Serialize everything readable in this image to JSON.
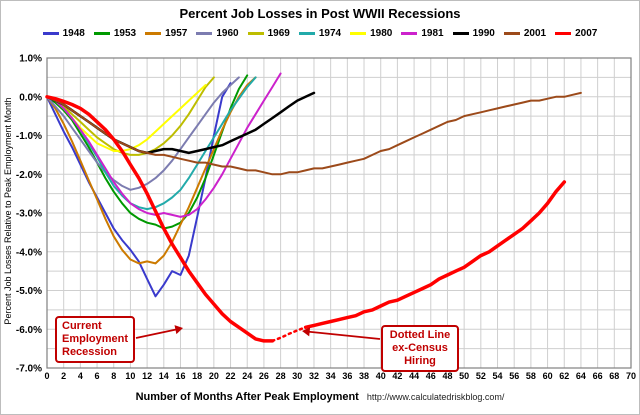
{
  "chart_data": {
    "type": "line",
    "title": "Percent Job Losses in Post WWII Recessions",
    "xlabel": "Number of Months After Peak Employment",
    "ylabel": "Percent Job Losses Relative to Peak Employment Month",
    "source_url": "http://www.calculatedriskblog.com/",
    "xlim": [
      0,
      70
    ],
    "ylim": [
      -7,
      1
    ],
    "x_tick_step": 2,
    "y_grid_step": 0.5,
    "grid": true,
    "legend_position": "top",
    "x_ticks": [
      0,
      2,
      4,
      6,
      8,
      10,
      12,
      14,
      16,
      18,
      20,
      22,
      24,
      26,
      28,
      30,
      32,
      34,
      36,
      38,
      40,
      42,
      44,
      46,
      48,
      50,
      52,
      54,
      56,
      58,
      60,
      62,
      64,
      66,
      68,
      70
    ],
    "y_ticks": [
      {
        "value": 1.0,
        "label": "1.0%"
      },
      {
        "value": 0.0,
        "label": "0.0%"
      },
      {
        "value": -1.0,
        "label": "-1.0%"
      },
      {
        "value": -2.0,
        "label": "-2.0%"
      },
      {
        "value": -3.0,
        "label": "-3.0%"
      },
      {
        "value": -4.0,
        "label": "-4.0%"
      },
      {
        "value": -5.0,
        "label": "-5.0%"
      },
      {
        "value": -6.0,
        "label": "-6.0%"
      },
      {
        "value": -7.0,
        "label": "-7.0%"
      }
    ],
    "series": [
      {
        "name": "1948",
        "color": "#3A3ACC",
        "width": 2,
        "values": [
          0,
          -0.45,
          -0.9,
          -1.3,
          -1.75,
          -2.2,
          -2.6,
          -3.0,
          -3.4,
          -3.7,
          -3.95,
          -4.25,
          -4.7,
          -5.15,
          -4.85,
          -4.5,
          -4.6,
          -4.1,
          -3.1,
          -2.1,
          -1.0,
          0.0,
          0.35
        ]
      },
      {
        "name": "1953",
        "color": "#009900",
        "width": 2,
        "values": [
          0,
          -0.15,
          -0.35,
          -0.6,
          -0.95,
          -1.3,
          -1.7,
          -2.1,
          -2.45,
          -2.75,
          -3.0,
          -3.15,
          -3.25,
          -3.3,
          -3.4,
          -3.35,
          -3.25,
          -3.0,
          -2.6,
          -2.1,
          -1.5,
          -0.9,
          -0.3,
          0.2,
          0.55
        ]
      },
      {
        "name": "1957",
        "color": "#CC7A00",
        "width": 2,
        "values": [
          0,
          -0.3,
          -0.7,
          -1.15,
          -1.65,
          -2.15,
          -2.65,
          -3.15,
          -3.6,
          -3.95,
          -4.2,
          -4.3,
          -4.25,
          -4.3,
          -4.1,
          -3.75,
          -3.3,
          -2.85,
          -2.35,
          -1.85,
          -1.35,
          -0.85,
          -0.4,
          0.0,
          0.3,
          0.5
        ]
      },
      {
        "name": "1960",
        "color": "#7C7CB0",
        "width": 2,
        "values": [
          0,
          -0.25,
          -0.5,
          -0.8,
          -1.1,
          -1.4,
          -1.7,
          -1.95,
          -2.15,
          -2.3,
          -2.4,
          -2.35,
          -2.25,
          -2.1,
          -1.9,
          -1.65,
          -1.35,
          -1.05,
          -0.75,
          -0.45,
          -0.15,
          0.1,
          0.3,
          0.5
        ]
      },
      {
        "name": "1969",
        "color": "#BDBD00",
        "width": 2,
        "values": [
          0,
          -0.1,
          -0.25,
          -0.45,
          -0.65,
          -0.85,
          -1.05,
          -1.2,
          -1.35,
          -1.45,
          -1.5,
          -1.5,
          -1.45,
          -1.35,
          -1.2,
          -1.0,
          -0.75,
          -0.45,
          -0.1,
          0.25,
          0.5
        ]
      },
      {
        "name": "1974",
        "color": "#22AAAA",
        "width": 2,
        "values": [
          0,
          -0.1,
          -0.3,
          -0.55,
          -0.85,
          -1.2,
          -1.55,
          -1.95,
          -2.3,
          -2.55,
          -2.75,
          -2.85,
          -2.9,
          -2.85,
          -2.75,
          -2.6,
          -2.4,
          -2.1,
          -1.75,
          -1.4,
          -1.05,
          -0.7,
          -0.35,
          -0.05,
          0.25,
          0.5
        ]
      },
      {
        "name": "1980",
        "color": "#FFFF00",
        "width": 2,
        "values": [
          0,
          -0.1,
          -0.3,
          -0.55,
          -0.8,
          -1.0,
          -1.2,
          -1.3,
          -1.4,
          -1.4,
          -1.35,
          -1.25,
          -1.1,
          -0.9,
          -0.7,
          -0.5,
          -0.3,
          -0.1,
          0.1,
          0.3
        ]
      },
      {
        "name": "1981",
        "color": "#CC22CC",
        "width": 2,
        "values": [
          0,
          -0.1,
          -0.3,
          -0.55,
          -0.85,
          -1.15,
          -1.5,
          -1.85,
          -2.2,
          -2.5,
          -2.75,
          -2.9,
          -3.0,
          -3.05,
          -3.0,
          -3.05,
          -3.1,
          -3.05,
          -2.9,
          -2.65,
          -2.35,
          -2.0,
          -1.6,
          -1.2,
          -0.8,
          -0.45,
          -0.1,
          0.25,
          0.6
        ]
      },
      {
        "name": "1990",
        "color": "#000000",
        "width": 2.5,
        "values": [
          0,
          -0.1,
          -0.2,
          -0.35,
          -0.5,
          -0.65,
          -0.8,
          -0.95,
          -1.1,
          -1.2,
          -1.3,
          -1.4,
          -1.45,
          -1.4,
          -1.35,
          -1.35,
          -1.4,
          -1.45,
          -1.4,
          -1.35,
          -1.3,
          -1.25,
          -1.15,
          -1.05,
          -0.95,
          -0.85,
          -0.7,
          -0.55,
          -0.4,
          -0.25,
          -0.1,
          0.0,
          0.1
        ]
      },
      {
        "name": "2001",
        "color": "#9C4A1A",
        "width": 2,
        "values": [
          0,
          -0.1,
          -0.2,
          -0.35,
          -0.5,
          -0.65,
          -0.8,
          -0.95,
          -1.1,
          -1.2,
          -1.3,
          -1.4,
          -1.45,
          -1.5,
          -1.5,
          -1.55,
          -1.6,
          -1.65,
          -1.7,
          -1.7,
          -1.75,
          -1.8,
          -1.8,
          -1.85,
          -1.9,
          -1.9,
          -1.95,
          -2.0,
          -2.0,
          -1.95,
          -1.95,
          -1.9,
          -1.85,
          -1.85,
          -1.8,
          -1.75,
          -1.7,
          -1.65,
          -1.6,
          -1.5,
          -1.4,
          -1.35,
          -1.25,
          -1.15,
          -1.05,
          -0.95,
          -0.85,
          -0.75,
          -0.65,
          -0.6,
          -0.5,
          -0.45,
          -0.4,
          -0.35,
          -0.3,
          -0.25,
          -0.2,
          -0.15,
          -0.1,
          -0.1,
          -0.05,
          0.0,
          0.0,
          0.05,
          0.1
        ]
      },
      {
        "name": "2007",
        "color": "#FF0000",
        "width": 3.5,
        "values": [
          0,
          -0.05,
          -0.12,
          -0.2,
          -0.3,
          -0.45,
          -0.65,
          -0.85,
          -1.1,
          -1.4,
          -1.75,
          -2.1,
          -2.5,
          -2.95,
          -3.4,
          -3.8,
          -4.15,
          -4.5,
          -4.8,
          -5.1,
          -5.35,
          -5.6,
          -5.8,
          -5.95,
          -6.1,
          -6.25,
          -6.3,
          -6.3,
          null,
          null,
          null,
          -5.95,
          -5.9,
          -5.85,
          -5.8,
          -5.75,
          -5.7,
          -5.65,
          -5.55,
          -5.5,
          -5.4,
          -5.3,
          -5.25,
          -5.15,
          -5.05,
          -4.95,
          -4.85,
          -4.7,
          -4.6,
          -4.5,
          -4.4,
          -4.25,
          -4.1,
          -4.0,
          -3.85,
          -3.7,
          -3.55,
          -3.4,
          -3.2,
          -3.0,
          -2.75,
          -2.45,
          -2.2
        ]
      }
    ],
    "dotted_segment": {
      "label": "Dotted Line ex-Census Hiring",
      "series": "2007",
      "color": "#FF0000",
      "width": 2.5,
      "start_month": 27,
      "values": [
        -6.3,
        -6.22,
        -6.12,
        -6.03,
        -5.95
      ]
    }
  },
  "annotations": {
    "current_recession": "Current\nEmployment\nRecession",
    "dotted_line": "Dotted Line\nex-Census\nHiring",
    "accent_color": "#C00000"
  }
}
